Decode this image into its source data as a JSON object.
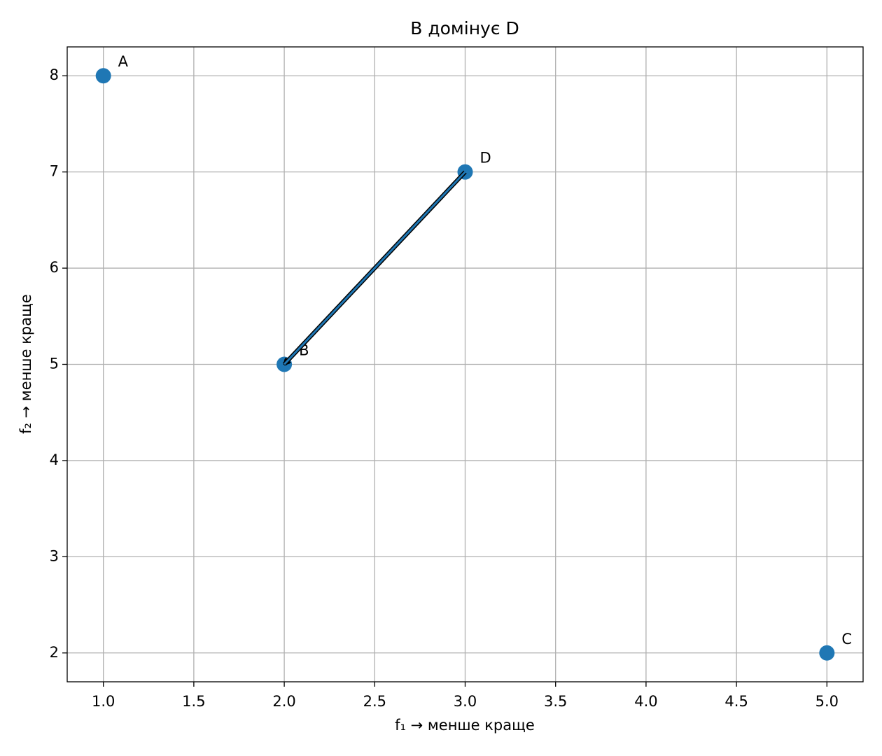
{
  "chart_data": {
    "type": "scatter",
    "title": "B домінує D",
    "xlabel": "f₁ → менше краще",
    "ylabel": "f₂ → менше краще",
    "series": [
      {
        "x": [
          1,
          2,
          5,
          3
        ],
        "values": [
          8,
          5,
          2,
          7
        ],
        "labels": [
          "A",
          "B",
          "C",
          "D"
        ],
        "color": "#1f77b4"
      }
    ],
    "arrows": [
      {
        "x": [
          3,
          2
        ],
        "y": [
          7,
          5
        ],
        "color": "#1f77b4"
      }
    ],
    "xlim": [
      0.8,
      5.2
    ],
    "ylim": [
      1.7,
      8.3
    ],
    "xticks": [
      {
        "value": 1,
        "label": "1.0"
      },
      1.5,
      {
        "value": 2,
        "label": "2.0"
      },
      2.5,
      {
        "value": 3,
        "label": "3.0"
      },
      3.5,
      {
        "value": 4,
        "label": "4.0"
      },
      4.5,
      {
        "value": 5,
        "label": "5.0"
      }
    ],
    "yticks": [
      2,
      3,
      4,
      5,
      6,
      7,
      8
    ],
    "grid": true
  }
}
